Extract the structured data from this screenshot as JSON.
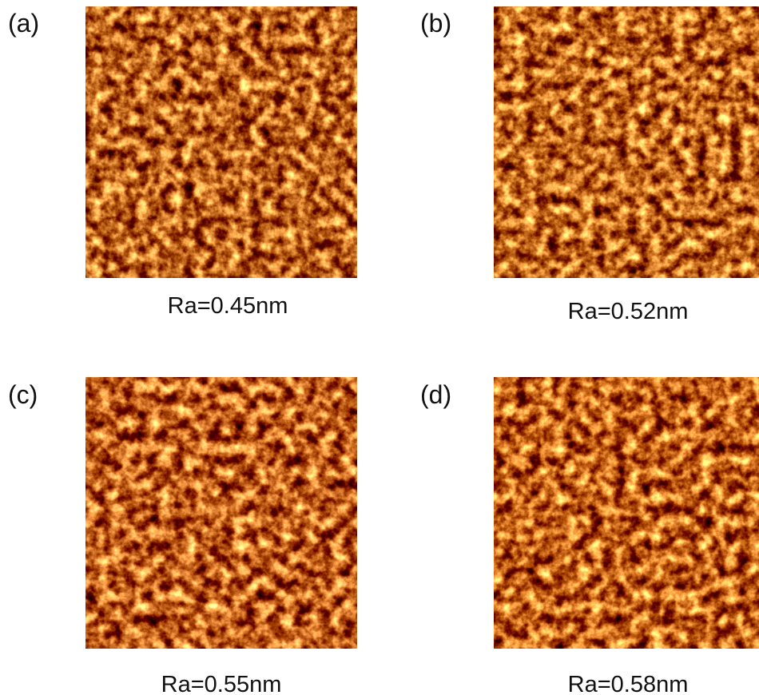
{
  "panels": [
    {
      "label": "(a)",
      "caption": "Ra=0.45nm"
    },
    {
      "label": "(b)",
      "caption": "Ra=0.52nm"
    },
    {
      "label": "(c)",
      "caption": "Ra=0.55nm"
    },
    {
      "label": "(d)",
      "caption": "Ra=0.58nm"
    }
  ]
}
